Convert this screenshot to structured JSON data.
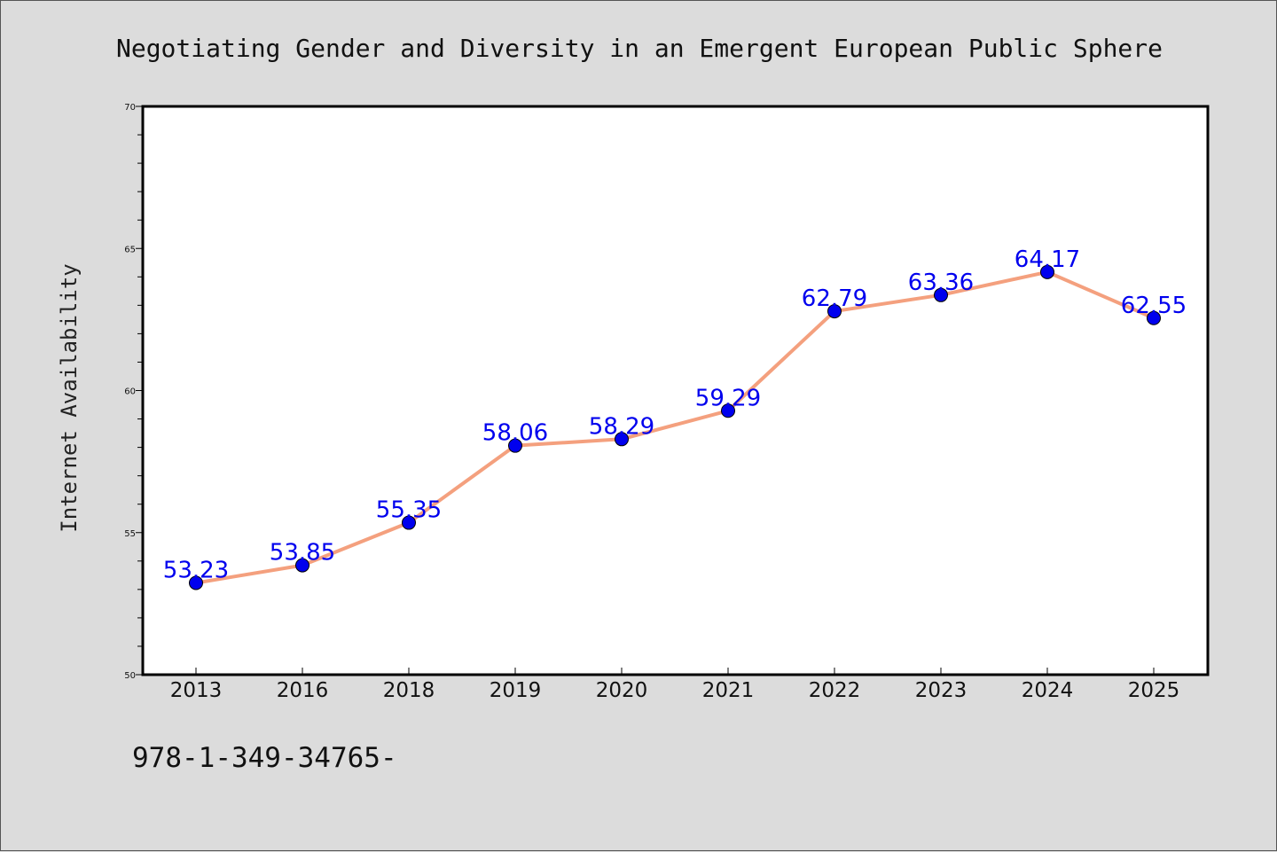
{
  "page": {
    "background": "#dcdcdc",
    "isbn_text": "978-1-349-34765-"
  },
  "chart_data": {
    "type": "line",
    "title": "Negotiating Gender and Diversity in an Emergent European Public Sphere",
    "xlabel": "",
    "ylabel": "Internet Availability",
    "categories": [
      "2013",
      "2016",
      "2018",
      "2019",
      "2020",
      "2021",
      "2022",
      "2023",
      "2024",
      "2025"
    ],
    "series": [
      {
        "values": [
          53.23,
          53.85,
          55.35,
          58.06,
          58.29,
          59.29,
          62.79,
          63.36,
          64.17,
          62.55
        ],
        "line_color": "#f4a07e",
        "marker_color": "#0000ee",
        "label_color": "#0000ee"
      }
    ],
    "data_labels": [
      "53.23",
      "53.85",
      "55.35",
      "58.06",
      "58.29",
      "59.29",
      "62.79",
      "63.36",
      "64.17",
      "62.55"
    ],
    "ylim": [
      50,
      70
    ],
    "yticks": [
      "50",
      "55",
      "60",
      "65",
      "70"
    ],
    "grid": false,
    "legend": "none"
  }
}
